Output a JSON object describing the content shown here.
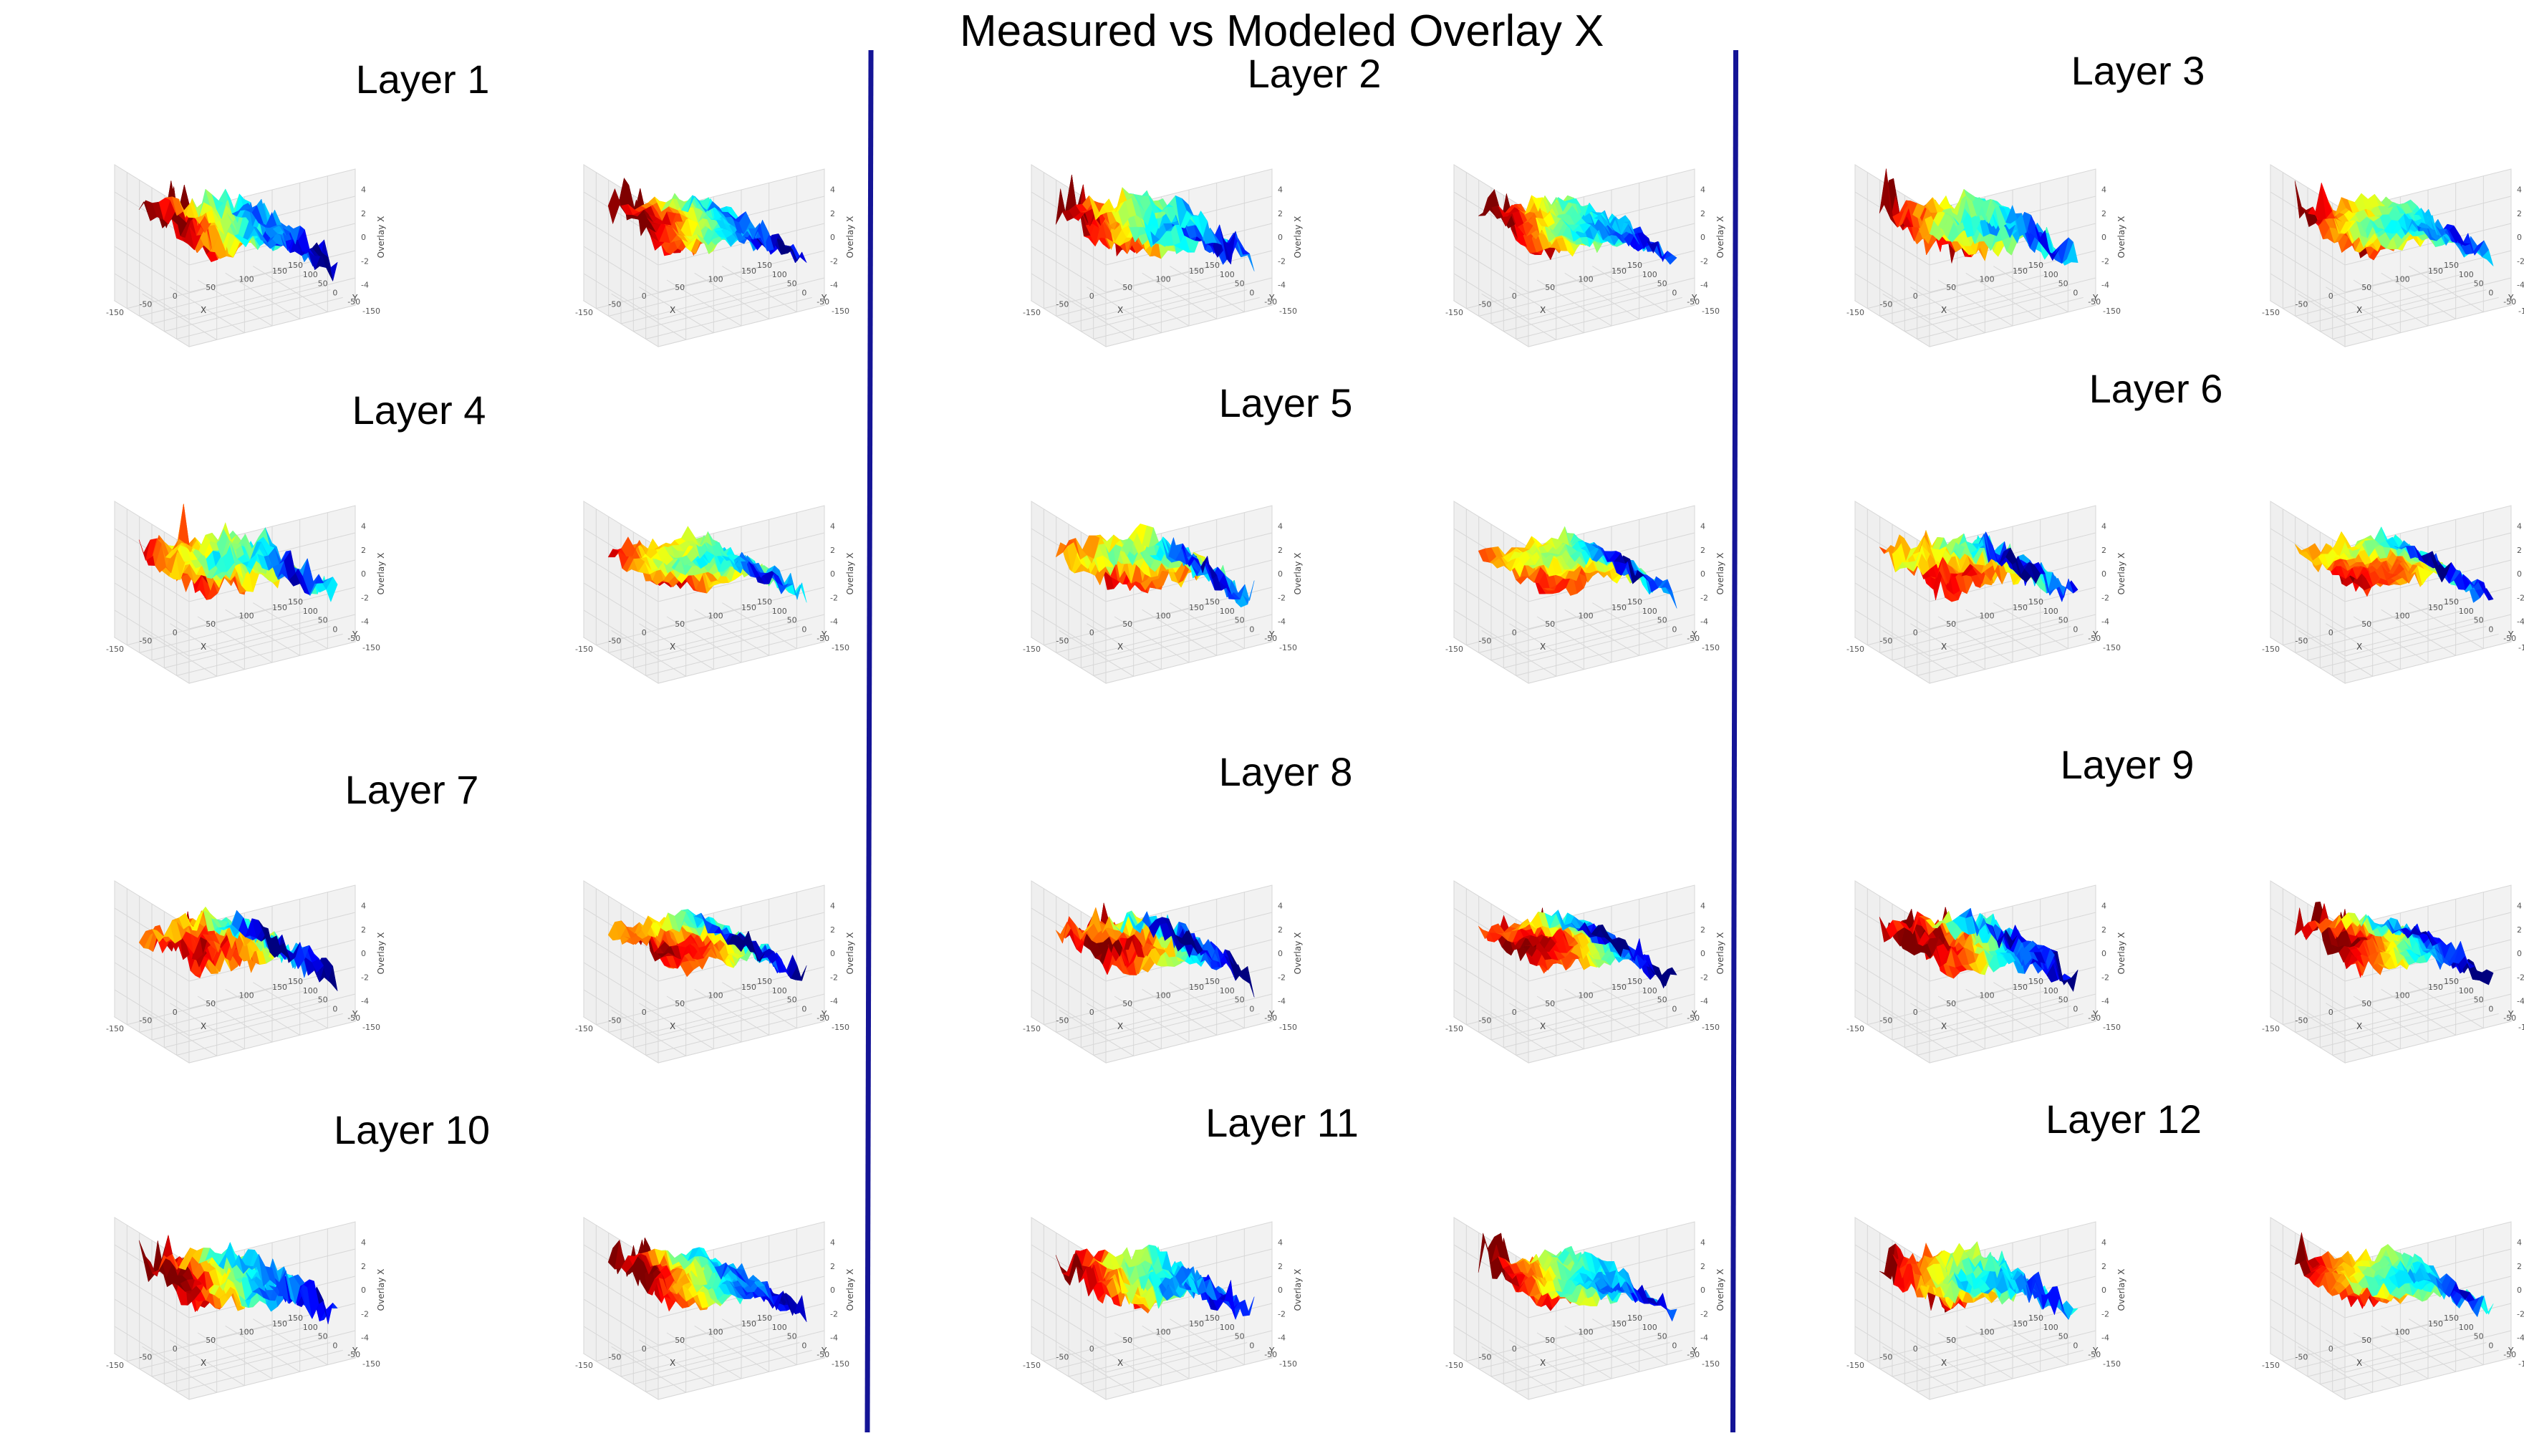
{
  "title": "Measured vs Modeled Overlay X",
  "chart_data": {
    "type": "surface3d-grid",
    "title": "Measured vs Modeled Overlay X",
    "colormap": [
      "#00007f",
      "#0000ff",
      "#0080ff",
      "#00ffff",
      "#80ff80",
      "#ffff00",
      "#ff8000",
      "#ff0000",
      "#7f0000"
    ],
    "x_ticks": [
      "-150",
      "-50",
      "0",
      "50",
      "100",
      "150"
    ],
    "y_ticks": [
      "150",
      "100",
      "50",
      "0",
      "-50",
      "-150"
    ],
    "z_ticks": [
      "4",
      "2",
      "0",
      "-2",
      "-4"
    ],
    "xlabel": "X",
    "ylabel": "Y",
    "zlabel": "Overlay X",
    "panels": [
      {
        "layer": "Layer 1",
        "plots": [
          {
            "kind": "measured"
          },
          {
            "kind": "modeled"
          }
        ]
      },
      {
        "layer": "Layer 2",
        "plots": [
          {
            "kind": "measured"
          },
          {
            "kind": "modeled"
          }
        ]
      },
      {
        "layer": "Layer 3",
        "plots": [
          {
            "kind": "measured"
          },
          {
            "kind": "modeled"
          }
        ]
      },
      {
        "layer": "Layer 4",
        "plots": [
          {
            "kind": "measured"
          },
          {
            "kind": "modeled"
          }
        ]
      },
      {
        "layer": "Layer 5",
        "plots": [
          {
            "kind": "measured"
          },
          {
            "kind": "modeled"
          }
        ]
      },
      {
        "layer": "Layer 6",
        "plots": [
          {
            "kind": "measured"
          },
          {
            "kind": "modeled"
          }
        ]
      },
      {
        "layer": "Layer 7",
        "plots": [
          {
            "kind": "measured"
          },
          {
            "kind": "modeled"
          }
        ]
      },
      {
        "layer": "Layer 8",
        "plots": [
          {
            "kind": "measured"
          },
          {
            "kind": "modeled"
          }
        ]
      },
      {
        "layer": "Layer 9",
        "plots": [
          {
            "kind": "measured"
          },
          {
            "kind": "modeled"
          }
        ]
      },
      {
        "layer": "Layer 10",
        "plots": [
          {
            "kind": "measured"
          },
          {
            "kind": "modeled"
          }
        ]
      },
      {
        "layer": "Layer 11",
        "plots": [
          {
            "kind": "measured"
          },
          {
            "kind": "modeled"
          }
        ]
      },
      {
        "layer": "Layer 12",
        "plots": [
          {
            "kind": "measured"
          },
          {
            "kind": "modeled"
          }
        ]
      }
    ]
  }
}
